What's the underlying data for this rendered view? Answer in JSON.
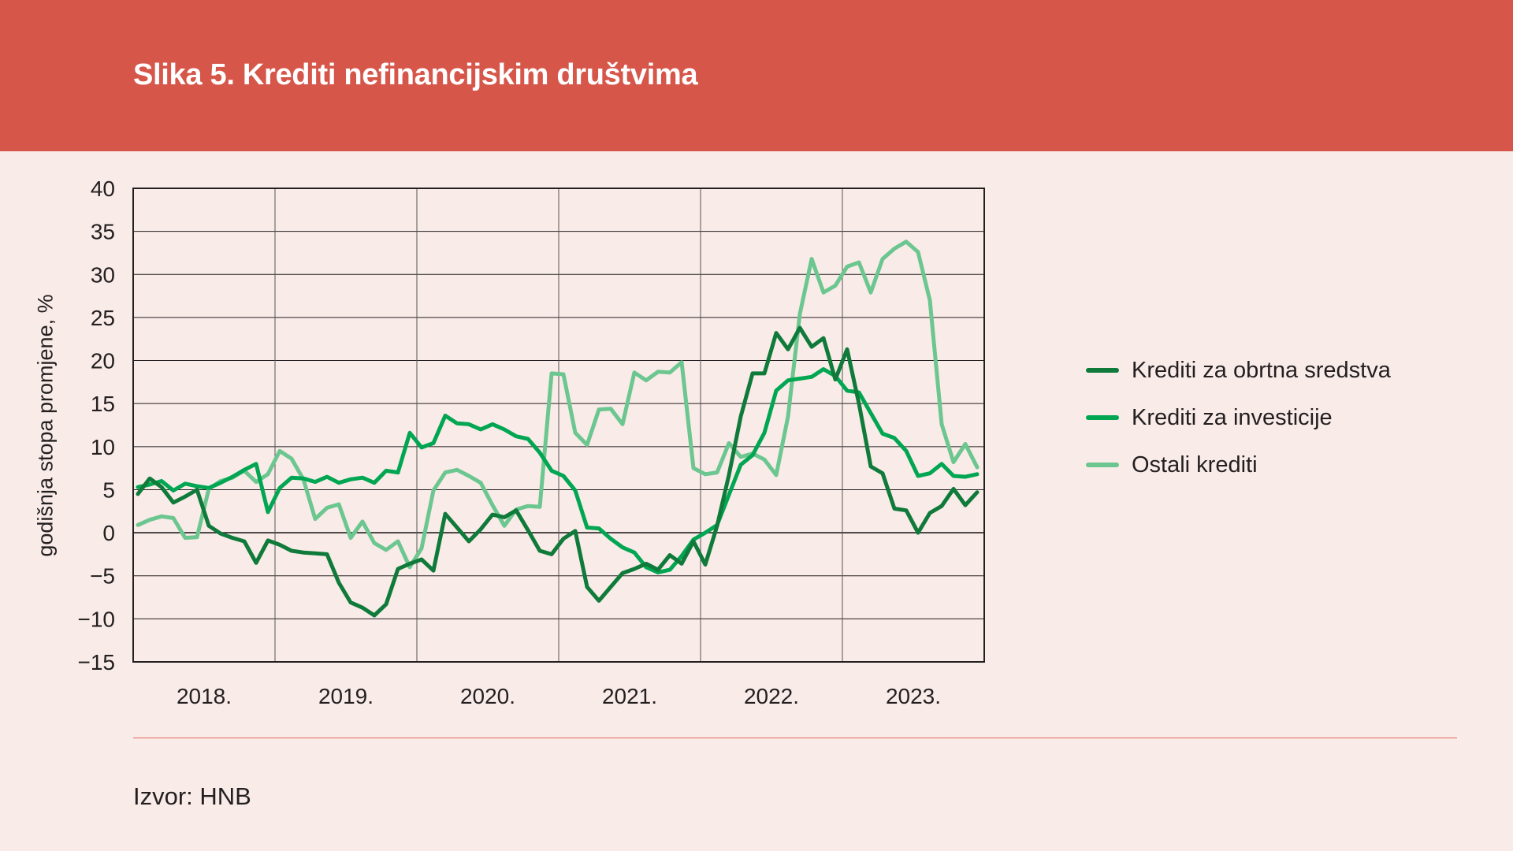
{
  "header": {
    "title": "Slika 5. Krediti nefinancijskim društvima"
  },
  "source": "Izvor: HNB",
  "colors": {
    "header": "#d6564a",
    "background": "#f9ebe8"
  },
  "chart_data": {
    "type": "line",
    "title": "Slika 5. Krediti nefinancijskim društvima",
    "xlabel": "",
    "ylabel": "godišnja stopa promjene, %",
    "ylim": [
      -15,
      40
    ],
    "yticks": [
      40,
      35,
      30,
      25,
      20,
      15,
      10,
      5,
      0,
      -5,
      -10,
      -15
    ],
    "ytick_labels": [
      "40",
      "35",
      "30",
      "25",
      "20",
      "15",
      "10",
      "5",
      "0",
      "−5",
      "−10",
      "−15"
    ],
    "x_labels": [
      "2018.",
      "2019.",
      "2020.",
      "2021.",
      "2022.",
      "2023."
    ],
    "x_start": "2018-01",
    "frequency": "monthly",
    "grid": true,
    "legend_position": "right",
    "series": [
      {
        "name": "Krediti za obrtna sredstva",
        "color": "#0f7a3a",
        "values": [
          4.5,
          6.3,
          5.3,
          3.5,
          4.2,
          5.0,
          0.8,
          -0.1,
          -0.6,
          -1.0,
          -3.5,
          -0.9,
          -1.4,
          -2.1,
          -2.3,
          -2.4,
          -2.5,
          -5.8,
          -8.1,
          -8.7,
          -9.6,
          -8.3,
          -4.2,
          -3.6,
          -3.1,
          -4.4,
          2.2,
          0.6,
          -1.0,
          0.4,
          2.1,
          1.8,
          2.6,
          0.3,
          -2.1,
          -2.5,
          -0.7,
          0.2,
          -6.3,
          -7.9,
          -6.3,
          -4.7,
          -4.2,
          -3.6,
          -4.3,
          -2.6,
          -3.6,
          -1.0,
          -3.7,
          0.8,
          6.7,
          13.5,
          18.5,
          18.5,
          23.2,
          21.3,
          23.8,
          21.6,
          22.6,
          17.8,
          21.3,
          15.0,
          7.7,
          6.9,
          2.8,
          2.6,
          0.0,
          2.3,
          3.1,
          5.1,
          3.2,
          4.7
        ]
      },
      {
        "name": "Krediti za investicije",
        "color": "#00a651",
        "values": [
          5.3,
          5.6,
          6.0,
          4.9,
          5.7,
          5.4,
          5.2,
          5.8,
          6.5,
          7.3,
          8.0,
          2.4,
          5.2,
          6.4,
          6.3,
          5.9,
          6.5,
          5.8,
          6.2,
          6.4,
          5.8,
          7.2,
          7.0,
          11.6,
          9.9,
          10.4,
          13.6,
          12.7,
          12.6,
          12.0,
          12.6,
          12.0,
          11.2,
          10.9,
          9.3,
          7.2,
          6.6,
          4.9,
          0.6,
          0.5,
          -0.7,
          -1.7,
          -2.3,
          -4.0,
          -4.6,
          -4.3,
          -2.7,
          -0.8,
          0.0,
          0.9,
          4.4,
          7.9,
          9.0,
          11.6,
          16.5,
          17.7,
          17.9,
          18.1,
          19.0,
          18.2,
          16.5,
          16.3,
          13.9,
          11.5,
          11.0,
          9.5,
          6.6,
          6.9,
          8.0,
          6.6,
          6.5,
          6.8
        ]
      },
      {
        "name": "Ostali krediti",
        "color": "#6cc68f",
        "values": [
          0.9,
          1.5,
          1.9,
          1.7,
          -0.6,
          -0.5,
          5.1,
          6.0,
          6.4,
          7.2,
          5.9,
          6.8,
          9.5,
          8.6,
          6.2,
          1.6,
          2.9,
          3.3,
          -0.6,
          1.3,
          -1.2,
          -2.0,
          -1.0,
          -4.0,
          -1.8,
          4.9,
          7.0,
          7.3,
          6.6,
          5.8,
          3.2,
          0.8,
          2.7,
          3.1,
          3.0,
          18.5,
          18.4,
          11.6,
          10.2,
          14.3,
          14.4,
          12.6,
          18.6,
          17.7,
          18.7,
          18.6,
          19.8,
          7.5,
          6.8,
          7.0,
          10.4,
          8.8,
          9.2,
          8.5,
          6.7,
          13.5,
          25.4,
          31.8,
          27.9,
          28.7,
          30.9,
          31.4,
          27.9,
          31.8,
          33.0,
          33.8,
          32.6,
          27.0,
          12.6,
          8.2,
          10.3,
          7.6
        ]
      }
    ]
  }
}
